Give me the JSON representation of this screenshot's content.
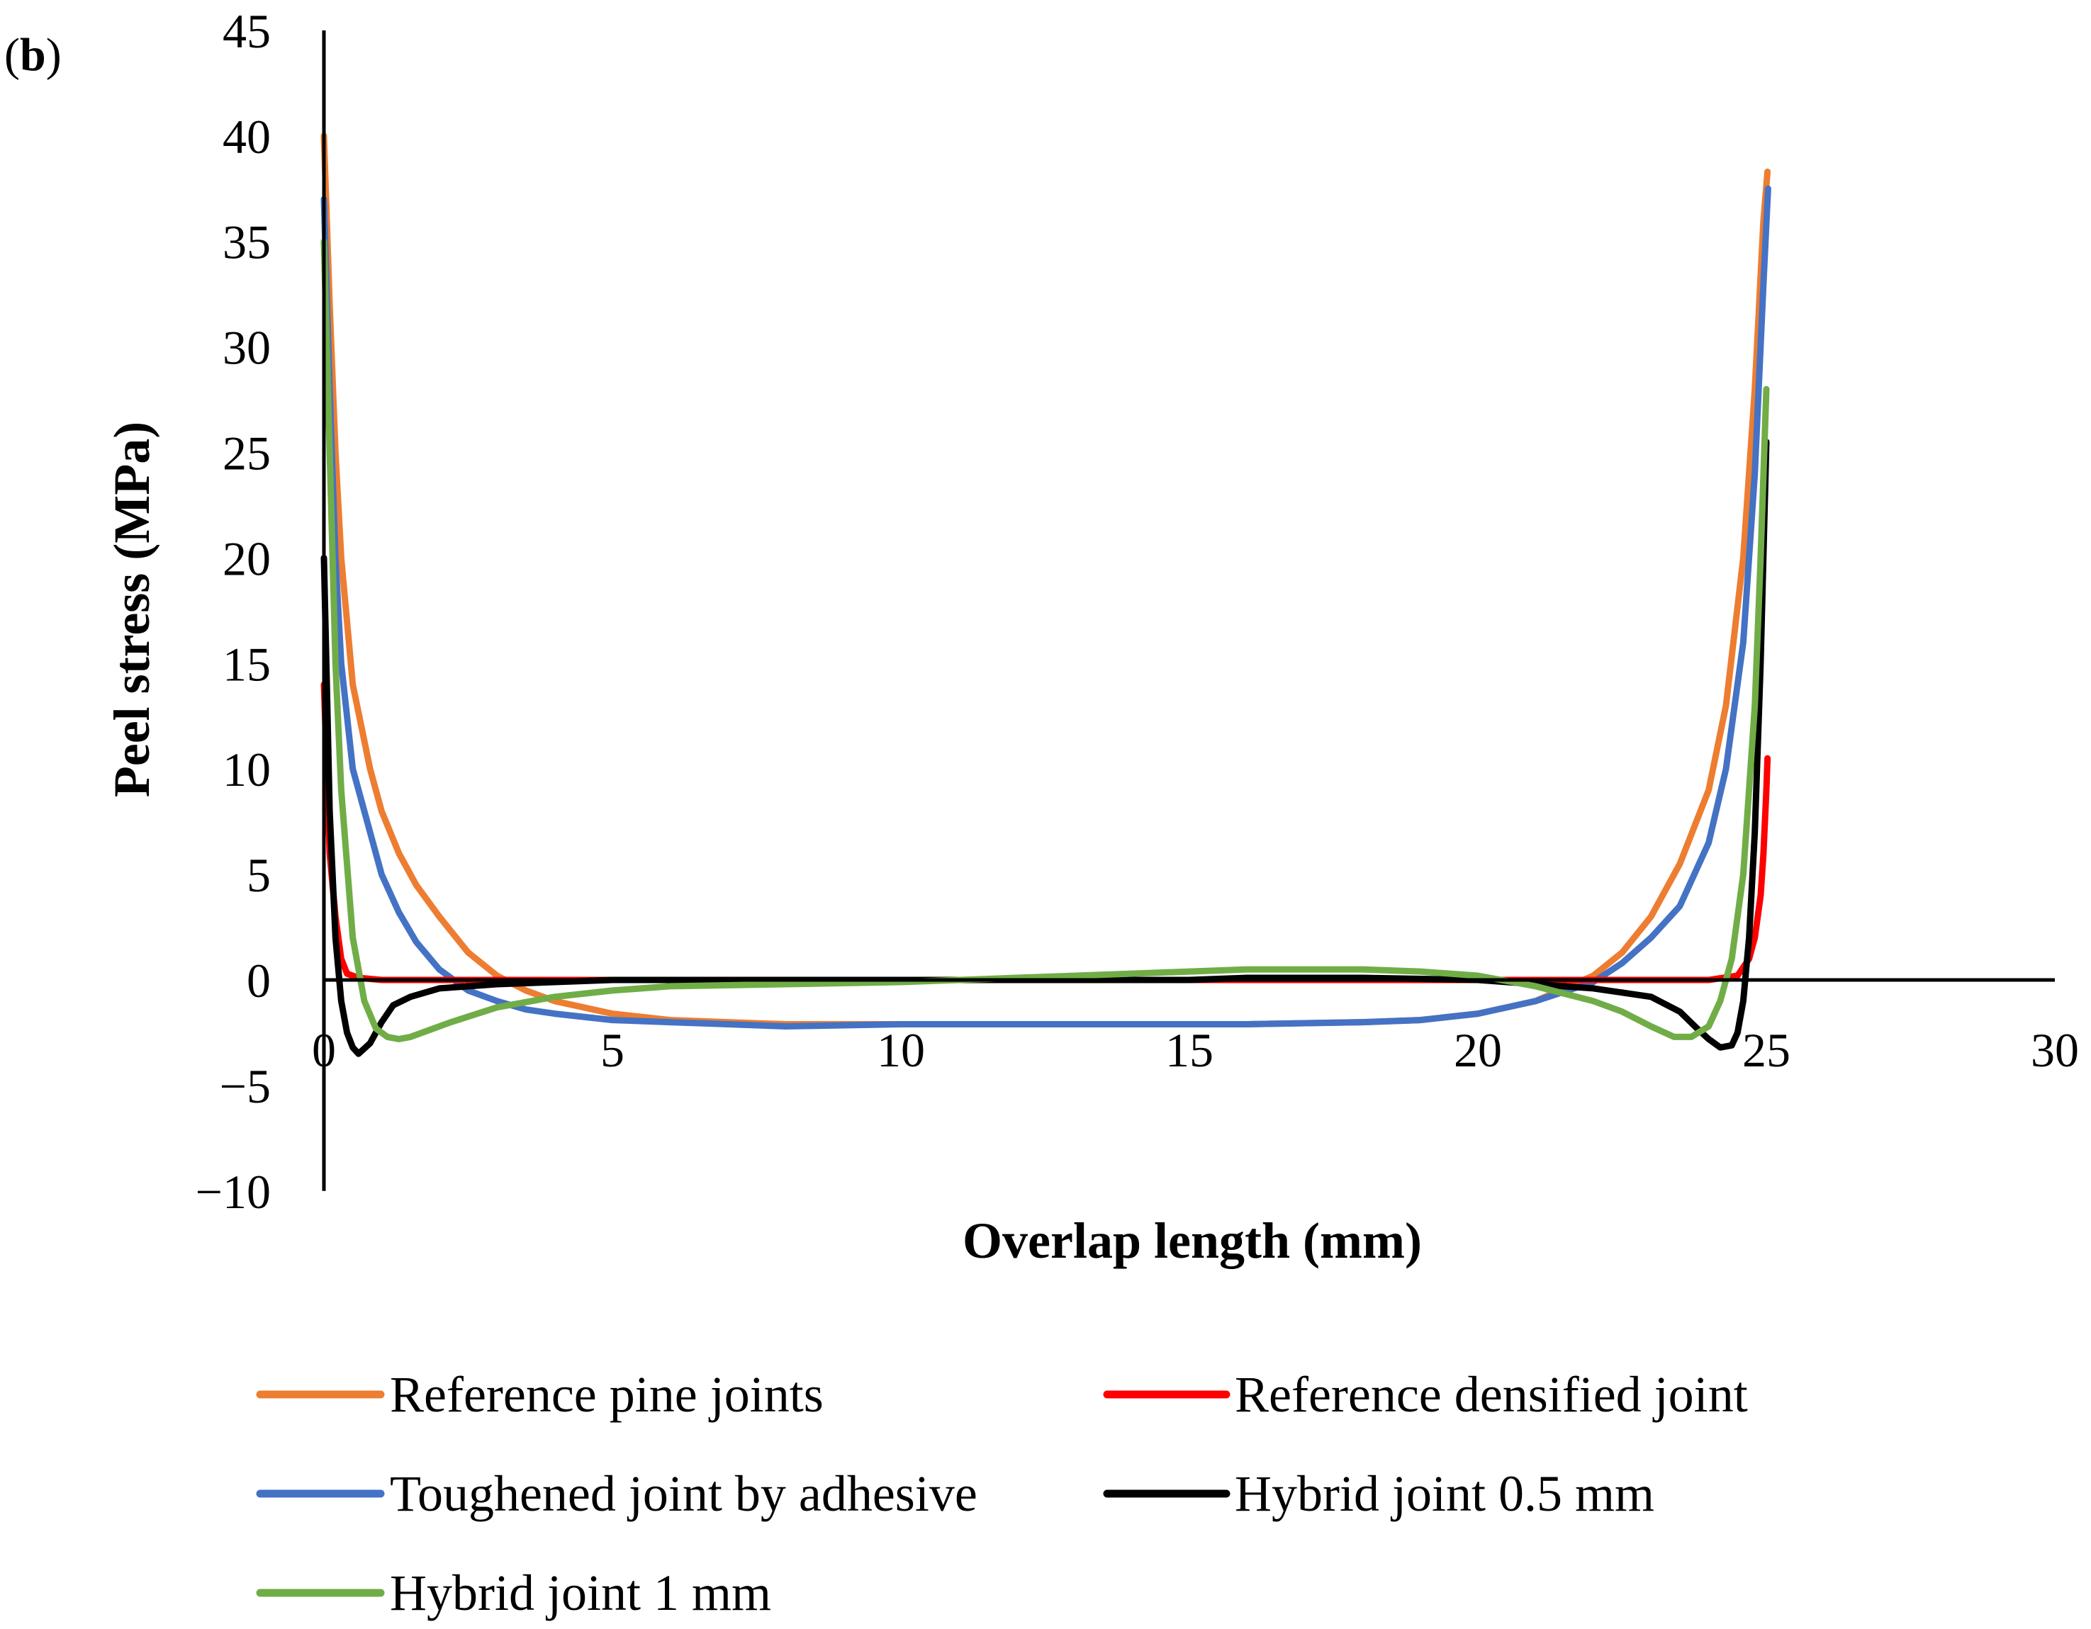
{
  "panel_label_prefix": "(",
  "panel_label_letter": "b",
  "panel_label_suffix": ")",
  "chart_data": {
    "type": "line",
    "title": "",
    "xlabel": "Overlap length (mm)",
    "ylabel": "Peel stress (MPa)",
    "xlim": [
      0,
      30
    ],
    "ylim": [
      -10,
      45
    ],
    "xticks": [
      0,
      5,
      10,
      15,
      20,
      25,
      30
    ],
    "yticks": [
      -10,
      -5,
      0,
      5,
      10,
      15,
      20,
      25,
      30,
      35,
      40,
      45
    ],
    "ytick_labels": [
      "−10",
      "−5",
      "0",
      "5",
      "10",
      "15",
      "20",
      "25",
      "30",
      "35",
      "40",
      "45"
    ],
    "grid": false,
    "legend_position": "bottom",
    "series": [
      {
        "name": "Reference pine joints",
        "color": "#ED7D31",
        "x": [
          0.0,
          0.1,
          0.2,
          0.3,
          0.5,
          0.8,
          1.0,
          1.3,
          1.6,
          2.0,
          2.5,
          3.0,
          3.5,
          4.0,
          5.0,
          6.0,
          7.0,
          8.0,
          10.0,
          12.0,
          14.0,
          16.0,
          18.0,
          19.0,
          20.0,
          21.0,
          22.0,
          22.5,
          23.0,
          23.5,
          24.0,
          24.3,
          24.6,
          24.8,
          24.95,
          25.02
        ],
        "values": [
          40.0,
          32.0,
          25.0,
          20.0,
          14.0,
          10.0,
          8.0,
          6.0,
          4.5,
          3.0,
          1.3,
          0.2,
          -0.5,
          -1.0,
          -1.6,
          -1.9,
          -2.0,
          -2.1,
          -2.1,
          -2.1,
          -2.1,
          -2.1,
          -2.0,
          -1.9,
          -1.6,
          -1.0,
          0.2,
          1.3,
          3.0,
          5.5,
          9.0,
          13.0,
          20.0,
          28.0,
          36.0,
          38.3
        ]
      },
      {
        "name": "Reference densified joint",
        "color": "#FF0000",
        "x": [
          0.0,
          0.05,
          0.1,
          0.2,
          0.3,
          0.4,
          0.6,
          1.0,
          2.0,
          5.0,
          10.0,
          15.0,
          20.0,
          23.0,
          24.0,
          24.5,
          24.7,
          24.8,
          24.9,
          24.95,
          25.0,
          25.02
        ],
        "values": [
          14.0,
          10.0,
          6.0,
          3.0,
          1.0,
          0.3,
          0.1,
          0.0,
          0.0,
          0.0,
          0.0,
          0.0,
          0.0,
          0.0,
          0.0,
          0.2,
          1.0,
          2.0,
          4.0,
          6.0,
          9.0,
          10.5
        ]
      },
      {
        "name": "Toughened joint by adhesive",
        "color": "#4472C4",
        "x": [
          0.0,
          0.1,
          0.2,
          0.3,
          0.5,
          0.8,
          1.0,
          1.3,
          1.6,
          2.0,
          2.5,
          3.0,
          3.5,
          4.0,
          5.0,
          6.0,
          7.0,
          8.0,
          10.0,
          12.0,
          14.0,
          16.0,
          18.0,
          19.0,
          20.0,
          21.0,
          22.0,
          22.5,
          23.0,
          23.5,
          24.0,
          24.3,
          24.6,
          24.8,
          24.95,
          25.03
        ],
        "values": [
          37.0,
          28.0,
          20.0,
          15.0,
          10.0,
          7.0,
          5.0,
          3.2,
          1.8,
          0.5,
          -0.5,
          -1.0,
          -1.4,
          -1.6,
          -1.9,
          -2.0,
          -2.1,
          -2.2,
          -2.1,
          -2.1,
          -2.1,
          -2.1,
          -2.0,
          -1.9,
          -1.6,
          -1.0,
          -0.1,
          0.8,
          2.0,
          3.5,
          6.5,
          10.0,
          16.0,
          24.0,
          33.0,
          37.5
        ]
      },
      {
        "name": "Hybrid joint 0.5 mm",
        "color": "#000000",
        "x": [
          0.0,
          0.05,
          0.1,
          0.2,
          0.3,
          0.4,
          0.5,
          0.6,
          0.8,
          1.0,
          1.2,
          1.5,
          2.0,
          3.0,
          5.0,
          8.0,
          10.0,
          15.0,
          16.0,
          18.0,
          20.0,
          22.0,
          23.0,
          23.5,
          23.8,
          24.0,
          24.2,
          24.4,
          24.5,
          24.6,
          24.7,
          24.8,
          24.9,
          25.0
        ],
        "values": [
          20.0,
          14.0,
          8.0,
          2.0,
          -1.0,
          -2.5,
          -3.2,
          -3.5,
          -3.0,
          -2.0,
          -1.2,
          -0.8,
          -0.4,
          -0.2,
          0.0,
          0.0,
          0.0,
          0.0,
          0.1,
          0.1,
          0.0,
          -0.4,
          -0.8,
          -1.5,
          -2.3,
          -2.8,
          -3.2,
          -3.1,
          -2.5,
          -1.0,
          2.0,
          7.0,
          15.0,
          25.5
        ]
      },
      {
        "name": "Hybrid joint 1 mm",
        "color": "#70AD47",
        "x": [
          0.0,
          0.1,
          0.2,
          0.3,
          0.5,
          0.7,
          0.9,
          1.1,
          1.3,
          1.5,
          1.8,
          2.2,
          3.0,
          4.0,
          5.0,
          6.0,
          8.0,
          10.0,
          12.0,
          14.0,
          16.0,
          18.0,
          19.0,
          20.0,
          21.0,
          22.0,
          22.5,
          23.0,
          23.4,
          23.7,
          24.0,
          24.2,
          24.4,
          24.6,
          24.8,
          24.9,
          25.0
        ],
        "values": [
          35.0,
          25.0,
          15.0,
          9.0,
          2.0,
          -1.0,
          -2.3,
          -2.7,
          -2.8,
          -2.7,
          -2.4,
          -2.0,
          -1.3,
          -0.8,
          -0.5,
          -0.3,
          -0.2,
          -0.1,
          0.1,
          0.3,
          0.5,
          0.5,
          0.4,
          0.2,
          -0.3,
          -1.0,
          -1.5,
          -2.2,
          -2.7,
          -2.7,
          -2.2,
          -1.0,
          1.0,
          5.0,
          13.0,
          20.0,
          28.0
        ]
      }
    ]
  }
}
